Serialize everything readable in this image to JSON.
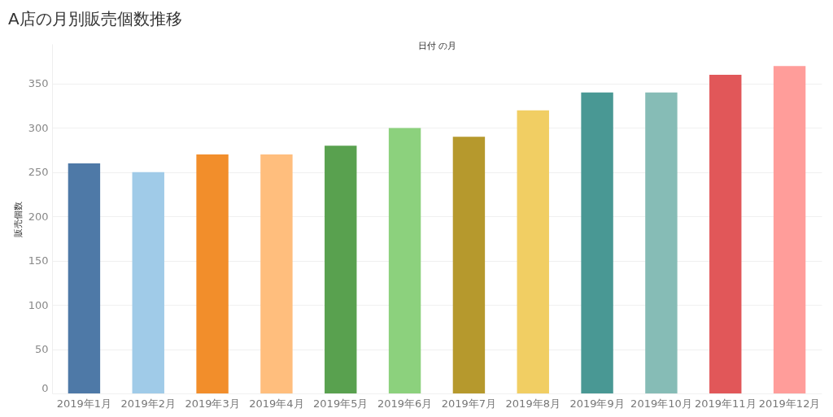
{
  "chart_data": {
    "type": "bar",
    "title": "A店の月別販売個数推移",
    "xlabel": "日付 の月",
    "ylabel": "販売個数",
    "categories": [
      "2019年1月",
      "2019年2月",
      "2019年3月",
      "2019年4月",
      "2019年5月",
      "2019年6月",
      "2019年7月",
      "2019年8月",
      "2019年9月",
      "2019年10月",
      "2019年11月",
      "2019年12月"
    ],
    "values": [
      260,
      250,
      270,
      270,
      280,
      300,
      290,
      320,
      340,
      340,
      360,
      370
    ],
    "colors": [
      "#4e79a7",
      "#a0cbe8",
      "#f28e2b",
      "#ffbe7d",
      "#59a14f",
      "#8cd17d",
      "#b6992d",
      "#f1ce63",
      "#499894",
      "#86bcb6",
      "#e15759",
      "#ff9d9a"
    ],
    "ylim": [
      0,
      395
    ],
    "yticks": [
      0,
      50,
      100,
      150,
      200,
      250,
      300,
      350
    ],
    "grid": "y"
  }
}
